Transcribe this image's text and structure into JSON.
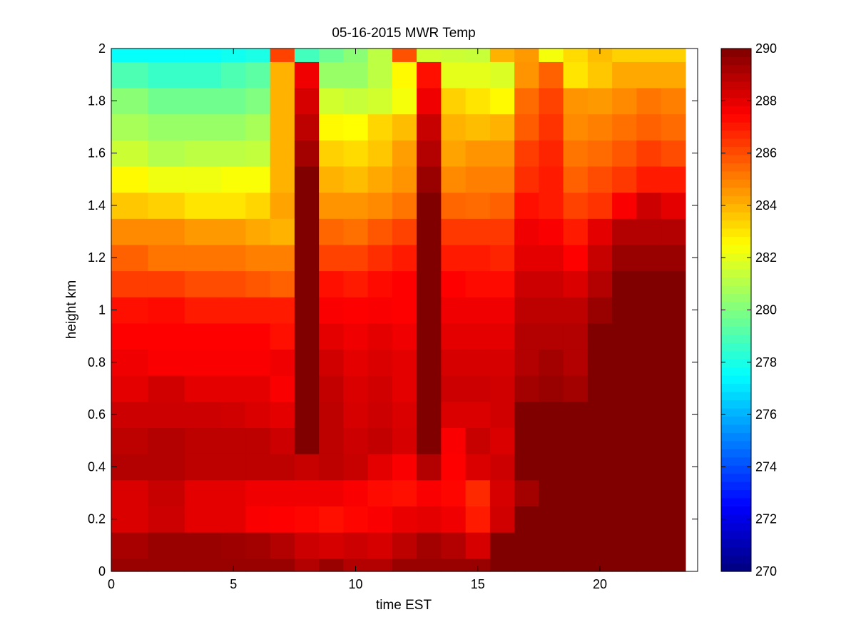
{
  "chart_data": {
    "type": "heatmap",
    "title": "05-16-2015 MWR Temp",
    "xlabel": "time EST",
    "ylabel": "height km",
    "xlim": [
      0,
      24
    ],
    "ylim": [
      0,
      2
    ],
    "xticks": [
      0,
      5,
      10,
      15,
      20
    ],
    "yticks": [
      0,
      0.2,
      0.4,
      0.6,
      0.8,
      1,
      1.2,
      1.4,
      1.6,
      1.8,
      2
    ],
    "colorbar": {
      "range": [
        270,
        290
      ],
      "ticks": [
        270,
        272,
        274,
        276,
        278,
        280,
        282,
        284,
        286,
        288,
        290
      ],
      "colormap": "jet"
    },
    "x_edges": [
      0,
      1.5,
      3,
      4.5,
      5.5,
      6.5,
      7.5,
      8.5,
      9.5,
      10.5,
      11.5,
      12.5,
      13.5,
      14.5,
      15.5,
      16.5,
      17.5,
      18.5,
      19.5,
      20.5,
      21.5,
      22.5,
      23.5
    ],
    "y_edges": [
      0,
      0.05,
      0.15,
      0.25,
      0.35,
      0.45,
      0.55,
      0.65,
      0.75,
      0.85,
      0.95,
      1.05,
      1.15,
      1.25,
      1.35,
      1.45,
      1.55,
      1.65,
      1.75,
      1.85,
      1.95,
      2.0
    ],
    "values": [
      [
        289.5,
        289.5,
        289.5,
        289.5,
        289.5,
        289.5,
        289.0,
        289.5,
        289.0,
        289.0,
        289.5,
        289.5,
        289.5,
        289.5,
        290,
        290,
        290,
        290,
        290,
        290,
        290,
        290
      ],
      [
        289.2,
        289.5,
        289.5,
        289.4,
        289.3,
        289.0,
        288.5,
        288.3,
        288.5,
        288.3,
        288.8,
        289.3,
        289.0,
        288.3,
        290,
        290,
        290,
        290,
        290,
        290,
        290,
        290
      ],
      [
        288.2,
        288.5,
        288.0,
        288.0,
        287.6,
        287.5,
        287.4,
        287.2,
        287.4,
        287.6,
        287.9,
        288.0,
        287.8,
        287.0,
        288.4,
        290,
        290,
        290,
        290,
        290,
        290,
        290
      ],
      [
        288.2,
        288.6,
        288.0,
        288.0,
        287.8,
        287.8,
        287.8,
        287.8,
        287.6,
        287.3,
        287.2,
        287.6,
        287.4,
        286.7,
        288.3,
        289.3,
        290,
        290,
        290,
        290,
        290,
        290
      ],
      [
        289.0,
        289.0,
        288.8,
        288.8,
        288.8,
        288.8,
        288.6,
        288.8,
        288.6,
        288.0,
        287.6,
        289.0,
        287.5,
        288.2,
        288.5,
        290,
        290,
        290,
        290,
        290,
        290,
        290
      ],
      [
        288.8,
        289.0,
        288.8,
        288.8,
        288.8,
        288.5,
        290,
        288.8,
        288.5,
        288.7,
        288.3,
        290,
        287.6,
        288.6,
        288.2,
        290,
        290,
        290,
        290,
        290,
        290,
        290
      ],
      [
        288.5,
        288.5,
        288.5,
        288.4,
        288.2,
        288.0,
        290,
        288.8,
        288.3,
        288.5,
        288.2,
        290,
        288.2,
        288.2,
        288.4,
        290,
        290,
        290,
        290,
        290,
        290,
        290
      ],
      [
        288.0,
        288.4,
        288.0,
        288.0,
        288.0,
        287.6,
        290,
        288.7,
        288.2,
        288.4,
        288.0,
        290,
        288.5,
        288.5,
        288.4,
        289.3,
        289.5,
        289.3,
        290,
        290,
        290,
        290
      ],
      [
        287.8,
        287.6,
        287.6,
        287.6,
        287.6,
        287.8,
        290,
        288.4,
        288.0,
        288.2,
        288.0,
        290,
        288.3,
        288.3,
        288.3,
        289.0,
        289.3,
        289.0,
        290,
        290,
        290,
        290
      ],
      [
        287.5,
        287.5,
        287.5,
        287.5,
        287.5,
        287.2,
        290,
        288.0,
        287.8,
        288.0,
        287.8,
        290,
        288.0,
        288.0,
        288.0,
        289.0,
        289.0,
        289.0,
        290,
        290,
        290,
        290
      ],
      [
        287.2,
        287.3,
        287.0,
        287.0,
        287.0,
        287.0,
        290,
        287.6,
        287.5,
        287.6,
        287.5,
        290,
        287.8,
        287.8,
        287.8,
        288.8,
        288.8,
        288.8,
        289.5,
        290,
        290,
        290
      ],
      [
        286.3,
        286.3,
        286.0,
        286.0,
        285.8,
        285.6,
        290,
        287.2,
        287.0,
        287.3,
        287.5,
        290,
        287.5,
        287.3,
        287.3,
        288.5,
        288.5,
        288.2,
        289.0,
        290,
        290,
        290
      ],
      [
        285.6,
        285.2,
        285.2,
        285.2,
        285.0,
        285.0,
        290,
        286.2,
        286.2,
        286.6,
        287.0,
        290,
        287.0,
        287.0,
        286.8,
        288.0,
        288.0,
        287.5,
        288.6,
        289.5,
        289.5,
        289.5
      ],
      [
        284.8,
        284.8,
        284.5,
        284.5,
        284.2,
        284.0,
        290,
        285.5,
        285.3,
        285.8,
        286.2,
        290,
        286.4,
        286.4,
        286.4,
        287.8,
        287.6,
        287.0,
        288.0,
        289.0,
        289.0,
        289.0
      ],
      [
        283.6,
        283.4,
        283.0,
        283.0,
        283.3,
        284.3,
        290,
        284.6,
        284.6,
        284.8,
        285.2,
        290,
        285.5,
        285.4,
        285.6,
        287.2,
        287.0,
        286.2,
        286.5,
        287.6,
        288.5,
        288.0
      ],
      [
        282.6,
        282.2,
        282.2,
        282.4,
        282.4,
        284.0,
        290,
        284.0,
        283.8,
        284.2,
        284.6,
        289.5,
        284.8,
        285.0,
        285.0,
        286.6,
        287.0,
        285.6,
        286.0,
        286.4,
        287.0,
        287.0
      ],
      [
        281.5,
        281.0,
        281.2,
        281.2,
        281.3,
        284.0,
        289.3,
        283.4,
        283.2,
        283.6,
        284.4,
        289.0,
        284.3,
        284.6,
        284.6,
        286.3,
        286.8,
        285.2,
        285.4,
        285.8,
        286.3,
        286.0
      ],
      [
        280.8,
        280.5,
        280.5,
        280.5,
        280.8,
        284.0,
        288.8,
        282.6,
        282.5,
        283.3,
        283.8,
        288.6,
        284.0,
        283.8,
        284.0,
        285.7,
        286.5,
        284.8,
        285.0,
        285.3,
        285.6,
        285.4
      ],
      [
        280.2,
        279.7,
        279.7,
        279.7,
        280.0,
        284.0,
        288.3,
        281.6,
        281.4,
        281.6,
        282.3,
        287.8,
        283.4,
        283.0,
        282.6,
        285.4,
        286.2,
        284.6,
        284.5,
        284.8,
        285.2,
        285.0
      ],
      [
        279.0,
        278.6,
        278.6,
        279.0,
        279.3,
        284.0,
        287.8,
        280.5,
        280.5,
        281.2,
        282.6,
        287.2,
        282.0,
        282.0,
        281.8,
        284.6,
        285.6,
        283.0,
        283.6,
        284.2,
        284.2,
        284.2
      ],
      [
        277.6,
        277.6,
        277.6,
        277.8,
        278.0,
        286.2,
        278.8,
        279.6,
        280.2,
        281.2,
        285.9,
        281.6,
        281.5,
        281.4,
        284.0,
        284.5,
        282.3,
        283.2,
        283.8,
        283.4,
        283.4,
        283.4
      ]
    ]
  }
}
